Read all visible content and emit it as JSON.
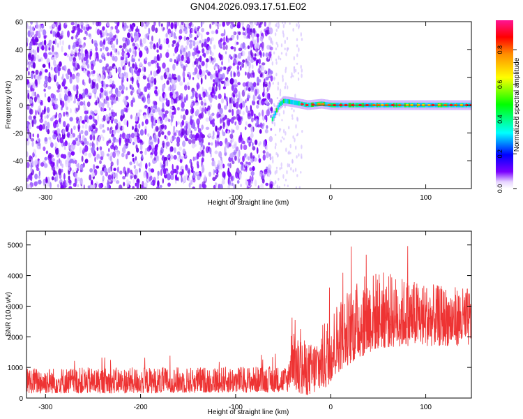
{
  "title": "GN04.2026.093.17.51.E02",
  "chart_data": [
    {
      "type": "heatmap",
      "xlabel": "Height of straight line (km)",
      "ylabel": "Frequency (Hz)",
      "xlim": [
        -320,
        148
      ],
      "ylim": [
        -60,
        60
      ],
      "xticks": [
        -300,
        -200,
        -100,
        0,
        100
      ],
      "yticks": [
        -60,
        -40,
        -20,
        0,
        20,
        40,
        60
      ],
      "colorbar": {
        "label": "Normalized spectral amplitude",
        "range": [
          0.0,
          0.97
        ],
        "ticks": [
          "0.0",
          "0.2",
          "0.4",
          "0.6",
          "0.8"
        ],
        "colors": [
          "#ffffff",
          "#e6d4ff",
          "#7a00ff",
          "#0000ff",
          "#00ffff",
          "#00ff00",
          "#ffff00",
          "#ff8c00",
          "#ff0000",
          "#ff1493"
        ]
      },
      "features": {
        "noise_region_x": [
          -320,
          -62
        ],
        "sparse_noise_x": [
          -62,
          -30
        ],
        "signal_line": {
          "x_start": -62,
          "x_end": 148,
          "freq": [
            [
              -62,
              -10
            ],
            [
              -55,
              0
            ],
            [
              -50,
              3
            ],
            [
              -40,
              2
            ],
            [
              -25,
              0
            ],
            [
              -10,
              1
            ],
            [
              0,
              0
            ],
            [
              148,
              0
            ]
          ]
        }
      }
    },
    {
      "type": "line",
      "xlabel": "Height of straight line (km)",
      "ylabel": "SNR (10 * v/v)",
      "xlim": [
        -320,
        148
      ],
      "ylim": [
        0,
        5450
      ],
      "xticks": [
        -300,
        -200,
        -100,
        0,
        100
      ],
      "yticks": [
        0,
        1000,
        2000,
        3000,
        4000,
        5000
      ],
      "series_color": "#ee3333",
      "envelope": [
        {
          "x": -320,
          "low": 150,
          "high": 1000
        },
        {
          "x": -200,
          "low": 150,
          "high": 1000
        },
        {
          "x": -45,
          "low": 200,
          "high": 1050
        },
        {
          "x": -40,
          "low": 500,
          "high": 3200
        },
        {
          "x": -35,
          "low": 50,
          "high": 2000
        },
        {
          "x": -20,
          "low": 100,
          "high": 1800
        },
        {
          "x": -5,
          "low": 300,
          "high": 2600
        },
        {
          "x": 10,
          "low": 900,
          "high": 3300
        },
        {
          "x": 30,
          "low": 1300,
          "high": 3900
        },
        {
          "x": 50,
          "low": 1600,
          "high": 4200
        },
        {
          "x": 80,
          "low": 1700,
          "high": 3900
        },
        {
          "x": 110,
          "low": 1700,
          "high": 3700
        },
        {
          "x": 148,
          "low": 1700,
          "high": 3600
        }
      ]
    }
  ]
}
